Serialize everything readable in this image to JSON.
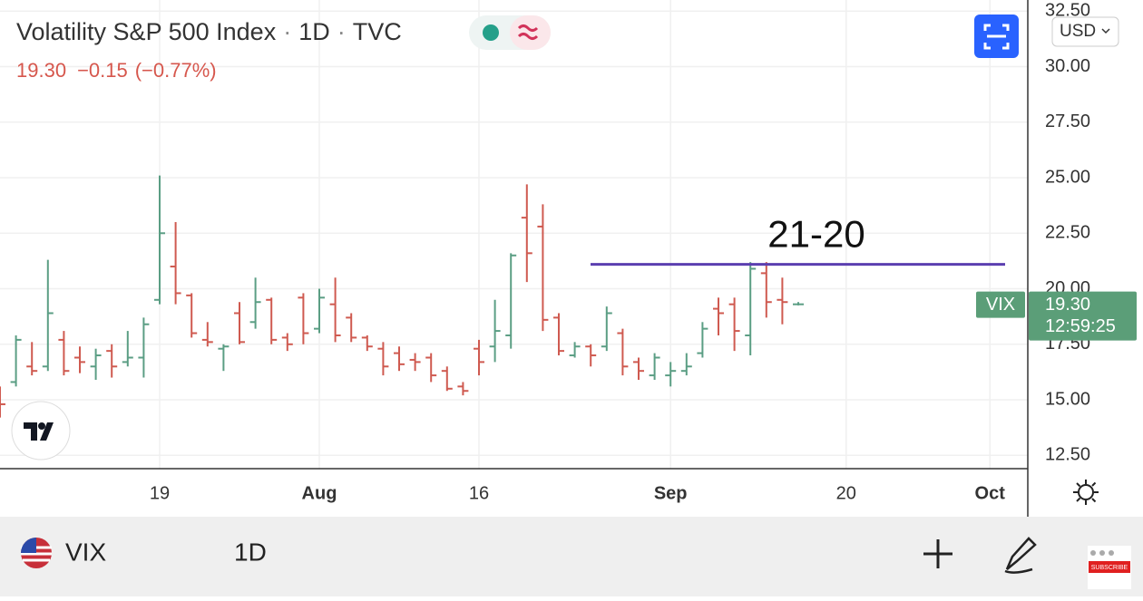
{
  "header": {
    "title": "Volatility S&P 500 Index",
    "separator": "·",
    "interval": "1D",
    "source": "TVC",
    "last": "19.30",
    "change": "−0.15",
    "change_pct": "(−0.77%)",
    "currency": "USD"
  },
  "toolbar": {
    "symbol": "VIX",
    "interval": "1D"
  },
  "badge": "SUBSCRIBE",
  "chart_data": {
    "type": "ohlc",
    "categories": [
      null,
      null,
      null,
      null,
      null,
      null,
      null,
      null,
      null,
      null,
      "19",
      null,
      null,
      null,
      null,
      null,
      null,
      null,
      null,
      null,
      "Aug",
      null,
      null,
      null,
      null,
      null,
      null,
      null,
      null,
      null,
      "16",
      null,
      null,
      null,
      null,
      null,
      null,
      null,
      null,
      null,
      null,
      null,
      "Sep",
      null,
      null,
      null,
      null,
      null,
      null,
      null,
      null,
      null,
      null,
      "20",
      null,
      null,
      null,
      null,
      null,
      null,
      null,
      null,
      "Oct",
      null,
      null
    ],
    "open": [
      15.4,
      15.8,
      16.5,
      16.5,
      17.7,
      16.9,
      16.5,
      17.2,
      16.7,
      16.9,
      19.5,
      21.0,
      19.7,
      17.7,
      17.3,
      18.9,
      18.5,
      19.5,
      17.8,
      19.6,
      18.2,
      19.3,
      18.7,
      17.8,
      17.3,
      17.1,
      16.8,
      16.9,
      16.3,
      15.6,
      17.3,
      17.4,
      17.9,
      23.2,
      22.8,
      18.7,
      17.0,
      17.4,
      17.4,
      18.0,
      16.7,
      16.1,
      16.1,
      16.3,
      17.1,
      19.1,
      19.3,
      17.9,
      20.7,
      19.5,
      19.3,
      null,
      null,
      null,
      null,
      null,
      null,
      null,
      null,
      null,
      null,
      null,
      null,
      null,
      null
    ],
    "high": [
      15.6,
      17.9,
      17.6,
      21.3,
      18.1,
      17.4,
      17.3,
      17.5,
      18.1,
      18.7,
      25.1,
      23.0,
      19.8,
      18.5,
      17.5,
      19.4,
      20.5,
      19.6,
      18.0,
      19.8,
      20.0,
      20.5,
      18.9,
      17.9,
      17.6,
      17.4,
      17.1,
      17.1,
      16.5,
      15.8,
      17.7,
      19.5,
      21.6,
      24.7,
      23.8,
      18.9,
      17.6,
      17.5,
      19.2,
      18.2,
      16.9,
      17.1,
      16.7,
      17.1,
      18.5,
      19.6,
      19.6,
      21.2,
      21.2,
      20.5,
      19.4,
      null,
      null,
      null,
      null,
      null,
      null,
      null,
      null,
      null,
      null,
      null,
      null,
      null,
      null
    ],
    "low": [
      14.2,
      15.6,
      16.1,
      16.3,
      16.1,
      16.2,
      15.9,
      16.0,
      16.5,
      16.0,
      19.3,
      19.3,
      17.8,
      17.4,
      16.3,
      17.5,
      18.2,
      17.5,
      17.2,
      17.5,
      18.0,
      17.6,
      17.6,
      17.2,
      16.1,
      16.3,
      16.3,
      15.8,
      15.4,
      15.2,
      16.1,
      16.7,
      17.3,
      20.3,
      18.1,
      17.0,
      16.9,
      16.5,
      17.2,
      16.1,
      15.9,
      15.9,
      15.6,
      16.1,
      16.9,
      17.9,
      17.2,
      17.0,
      18.7,
      18.4,
      19.25,
      null,
      null,
      null,
      null,
      null,
      null,
      null,
      null,
      null,
      null,
      null,
      null,
      null,
      null
    ],
    "close": [
      14.8,
      17.7,
      16.3,
      18.9,
      16.3,
      16.7,
      17.0,
      16.5,
      16.9,
      18.4,
      22.5,
      19.8,
      18.0,
      17.6,
      17.4,
      17.6,
      19.4,
      17.7,
      17.5,
      18.0,
      19.6,
      17.9,
      17.8,
      17.4,
      16.5,
      16.6,
      16.7,
      16.1,
      15.5,
      15.4,
      16.7,
      18.1,
      21.5,
      21.6,
      18.6,
      17.2,
      17.4,
      17.0,
      18.9,
      16.5,
      16.3,
      16.9,
      16.3,
      16.5,
      18.2,
      18.9,
      18.1,
      20.9,
      19.4,
      19.4,
      19.3,
      null,
      null,
      null,
      null,
      null,
      null,
      null,
      null,
      null,
      null,
      null,
      null,
      null,
      null
    ],
    "up_color": "#5b9e84",
    "down_color": "#cf5a50",
    "ylim": [
      11.9,
      33.0
    ],
    "yticks": [
      {
        "value": 12.5,
        "label": "12.50"
      },
      {
        "value": 15,
        "label": "15.00"
      },
      {
        "value": 17.5,
        "label": "17.50"
      },
      {
        "value": 20,
        "label": "20.00"
      },
      {
        "value": 22.5,
        "label": "22.50"
      },
      {
        "value": 25,
        "label": "25.00"
      },
      {
        "value": 27.5,
        "label": "27.50"
      },
      {
        "value": 30,
        "label": "30.00"
      },
      {
        "value": 32.5,
        "label": "32.50"
      }
    ],
    "grid": true,
    "hline": {
      "value": 21.1,
      "label": "21-20",
      "color": "#5b3fb0"
    },
    "last_price": {
      "symbol": "VIX",
      "value": 19.3,
      "label": "19.30",
      "countdown": "12:59:25",
      "color": "#5b9e78"
    }
  }
}
